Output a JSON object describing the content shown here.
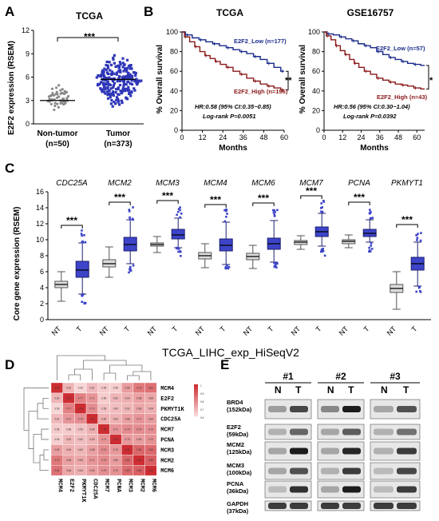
{
  "panels": {
    "A": "A",
    "B": "B",
    "C": "C",
    "D": "D",
    "E": "E"
  },
  "panelA": {
    "title": "TCGA",
    "ylabel": "E2F2 expression (RSEM)",
    "yticks": [
      "0",
      "3",
      "6",
      "9",
      "12"
    ],
    "significance": "***",
    "groups": [
      {
        "name": "Non-tumor",
        "n": "(n=50)",
        "median": 3.0,
        "min": 1.4,
        "max": 5.6,
        "count": 50
      },
      {
        "name": "Tumor",
        "n": "(n=373)",
        "median": 5.7,
        "min": 1.6,
        "max": 9.6,
        "count": 373
      }
    ]
  },
  "panelB": {
    "ylabel": "% Overall survival",
    "xlabel": "Months",
    "yticks": [
      "0",
      "20",
      "40",
      "60",
      "80",
      "100"
    ],
    "plots": [
      {
        "title": "TCGA",
        "xticks": [
          "0",
          "12",
          "24",
          "36",
          "48",
          "60"
        ],
        "xmax": 60,
        "low_label": "E2F2_Low (n=177)",
        "high_label": "E2F2_High (n=196)",
        "sig": "**",
        "hr": "HR:0.58 (95% CI:0.35~0.85)",
        "p": "Log-rank P=0.0051",
        "low_curve": [
          [
            0,
            100
          ],
          [
            4,
            97
          ],
          [
            8,
            94
          ],
          [
            12,
            92
          ],
          [
            16,
            90
          ],
          [
            20,
            88
          ],
          [
            24,
            86
          ],
          [
            28,
            84
          ],
          [
            32,
            82
          ],
          [
            36,
            80
          ],
          [
            40,
            78
          ],
          [
            44,
            75
          ],
          [
            48,
            72
          ],
          [
            52,
            68
          ],
          [
            56,
            64
          ],
          [
            60,
            60
          ]
        ],
        "high_curve": [
          [
            0,
            100
          ],
          [
            3,
            95
          ],
          [
            6,
            90
          ],
          [
            9,
            85
          ],
          [
            12,
            80
          ],
          [
            15,
            76
          ],
          [
            18,
            73
          ],
          [
            21,
            70
          ],
          [
            24,
            67
          ],
          [
            28,
            64
          ],
          [
            32,
            60
          ],
          [
            36,
            57
          ],
          [
            40,
            53
          ],
          [
            44,
            50
          ],
          [
            48,
            47
          ],
          [
            52,
            45
          ],
          [
            56,
            43
          ],
          [
            60,
            41
          ]
        ]
      },
      {
        "title": "GSE16757",
        "xticks": [
          "0",
          "12",
          "24",
          "36",
          "48",
          "60"
        ],
        "xmax": 65,
        "low_label": "E2F2_Low (n=57)",
        "high_label": "E2F2_High (n=43)",
        "sig": "*",
        "hr": "HR:0.56 (95% CI:0.30~1.04)",
        "p": "Log-rank P=0.0392",
        "low_curve": [
          [
            0,
            100
          ],
          [
            4,
            98
          ],
          [
            8,
            97
          ],
          [
            12,
            95
          ],
          [
            16,
            93
          ],
          [
            20,
            91
          ],
          [
            24,
            88
          ],
          [
            28,
            86
          ],
          [
            32,
            84
          ],
          [
            36,
            80
          ],
          [
            40,
            77
          ],
          [
            44,
            74
          ],
          [
            48,
            72
          ],
          [
            52,
            70
          ],
          [
            56,
            68
          ],
          [
            60,
            67
          ],
          [
            65,
            66
          ]
        ],
        "high_curve": [
          [
            0,
            100
          ],
          [
            3,
            96
          ],
          [
            6,
            92
          ],
          [
            9,
            86
          ],
          [
            12,
            81
          ],
          [
            15,
            77
          ],
          [
            18,
            72
          ],
          [
            21,
            68
          ],
          [
            24,
            64
          ],
          [
            28,
            60
          ],
          [
            32,
            57
          ],
          [
            36,
            53
          ],
          [
            40,
            51
          ],
          [
            44,
            49
          ],
          [
            48,
            47
          ],
          [
            52,
            46
          ],
          [
            56,
            45
          ],
          [
            60,
            43
          ],
          [
            65,
            42
          ]
        ]
      }
    ]
  },
  "panelC": {
    "ylabel": "Core gene expression (RSEM)",
    "xlabel": "TCGA_LIHC_exp_HiSeqV2",
    "yticks": [
      "0",
      "2",
      "4",
      "6",
      "8",
      "10",
      "12",
      "14",
      "16"
    ],
    "ymax": 16,
    "significance": "***",
    "genes": [
      {
        "name": "CDC25A",
        "NT": {
          "q1": 4.0,
          "med": 4.4,
          "q3": 4.8,
          "lo": 2.3,
          "hi": 6.0
        },
        "T": {
          "q1": 5.3,
          "med": 6.2,
          "q3": 7.3,
          "lo": 3.2,
          "hi": 9.6
        }
      },
      {
        "name": "MCM2",
        "NT": {
          "q1": 6.6,
          "med": 7.0,
          "q3": 7.5,
          "lo": 5.3,
          "hi": 9.1
        },
        "T": {
          "q1": 8.6,
          "med": 9.4,
          "q3": 10.3,
          "lo": 7.0,
          "hi": 12.5
        }
      },
      {
        "name": "MCM3",
        "NT": {
          "q1": 9.2,
          "med": 9.4,
          "q3": 9.6,
          "lo": 8.4,
          "hi": 10.4
        },
        "T": {
          "q1": 10.1,
          "med": 10.6,
          "q3": 11.3,
          "lo": 9.0,
          "hi": 12.7
        }
      },
      {
        "name": "MCM4",
        "NT": {
          "q1": 7.6,
          "med": 8.0,
          "q3": 8.4,
          "lo": 6.5,
          "hi": 9.5
        },
        "T": {
          "q1": 8.6,
          "med": 9.3,
          "q3": 10.1,
          "lo": 6.9,
          "hi": 12.2
        }
      },
      {
        "name": "MCM6",
        "NT": {
          "q1": 7.5,
          "med": 7.9,
          "q3": 8.3,
          "lo": 6.4,
          "hi": 9.3
        },
        "T": {
          "q1": 8.8,
          "med": 9.5,
          "q3": 10.2,
          "lo": 7.2,
          "hi": 12.4
        }
      },
      {
        "name": "MCM7",
        "NT": {
          "q1": 9.4,
          "med": 9.7,
          "q3": 9.9,
          "lo": 8.8,
          "hi": 10.5
        },
        "T": {
          "q1": 10.4,
          "med": 11.0,
          "q3": 11.6,
          "lo": 9.2,
          "hi": 13.3
        }
      },
      {
        "name": "PCNA",
        "NT": {
          "q1": 9.5,
          "med": 9.8,
          "q3": 10.0,
          "lo": 9.0,
          "hi": 10.6
        },
        "T": {
          "q1": 10.4,
          "med": 10.8,
          "q3": 11.3,
          "lo": 9.7,
          "hi": 12.5
        }
      },
      {
        "name": "PKMYT1",
        "NT": {
          "q1": 3.4,
          "med": 3.9,
          "q3": 4.4,
          "lo": 1.3,
          "hi": 6.0
        },
        "T": {
          "q1": 6.2,
          "med": 7.0,
          "q3": 7.8,
          "lo": 4.2,
          "hi": 9.7
        }
      }
    ],
    "xcats": [
      "NT",
      "T"
    ]
  },
  "panelD": {
    "rows": [
      "MCM4",
      "E2F2",
      "PKMYT1K",
      "CDC25A",
      "MCM7",
      "PCNA",
      "MCM3",
      "MCM2",
      "MCM6"
    ],
    "cols": [
      "MCM4",
      "E2F2",
      "PKMYT1K",
      "CDC25A",
      "MCM7",
      "PCNA",
      "MCM3",
      "MCM2",
      "MCM6"
    ],
    "legend": [
      "1",
      "0.9",
      "0.8",
      "0.7",
      "0.6"
    ],
    "values": [
      [
        1.0,
        0.62,
        0.53,
        0.61,
        0.56,
        0.55,
        0.69,
        0.79,
        0.81
      ],
      [
        0.62,
        1.0,
        0.77,
        0.71,
        0.56,
        0.62,
        0.64,
        0.68,
        0.66
      ],
      [
        0.53,
        0.77,
        1.0,
        0.73,
        0.59,
        0.6,
        0.62,
        0.66,
        0.64
      ],
      [
        0.61,
        0.71,
        0.73,
        1.0,
        0.64,
        0.63,
        0.68,
        0.71,
        0.69
      ],
      [
        0.56,
        0.56,
        0.59,
        0.64,
        1.0,
        0.71,
        0.74,
        0.74,
        0.73
      ],
      [
        0.55,
        0.62,
        0.6,
        0.63,
        0.71,
        1.0,
        0.7,
        0.69,
        0.72
      ],
      [
        0.69,
        0.64,
        0.62,
        0.68,
        0.74,
        0.7,
        1.0,
        0.84,
        0.83
      ],
      [
        0.79,
        0.68,
        0.66,
        0.71,
        0.74,
        0.69,
        0.84,
        1.0,
        0.86
      ],
      [
        0.81,
        0.66,
        0.64,
        0.69,
        0.73,
        0.72,
        0.83,
        0.86,
        1.0
      ]
    ]
  },
  "panelE": {
    "samples": [
      "#1",
      "#2",
      "#3"
    ],
    "lanes": [
      "N",
      "T"
    ],
    "proteins": [
      {
        "name": "BRD4",
        "kda": "(152kDa)",
        "N": [
          0.35,
          0.45,
          0.3
        ],
        "T": [
          0.75,
          0.95,
          0.7
        ]
      },
      {
        "name": "E2F2",
        "kda": "(59kDa)",
        "N": [
          0.25,
          0.3,
          0.25
        ],
        "T": [
          0.6,
          0.65,
          0.55
        ]
      },
      {
        "name": "MCM2",
        "kda": "(125kDa)",
        "N": [
          0.3,
          0.3,
          0.25
        ],
        "T": [
          0.95,
          0.9,
          0.8
        ]
      },
      {
        "name": "MCM3",
        "kda": "(100kDa)",
        "N": [
          0.3,
          0.25,
          0.2
        ],
        "T": [
          0.7,
          0.8,
          0.75
        ]
      },
      {
        "name": "PCNA",
        "kda": "(36kDa)",
        "N": [
          0.2,
          0.3,
          0.2
        ],
        "T": [
          0.85,
          0.95,
          0.8
        ]
      },
      {
        "name": "GAPDH",
        "kda": "(37kDa)",
        "N": [
          0.8,
          0.8,
          0.8
        ],
        "T": [
          0.8,
          0.8,
          0.8
        ]
      }
    ]
  }
}
